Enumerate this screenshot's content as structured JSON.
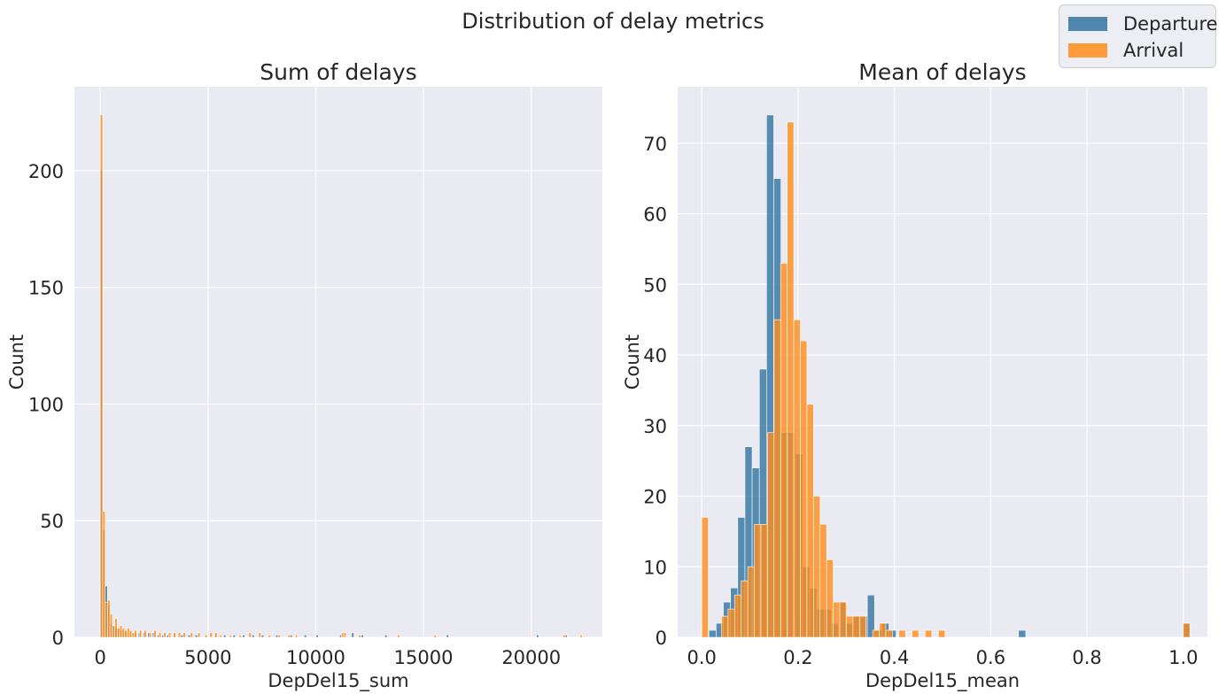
{
  "suptitle": "Distribution of delay metrics",
  "colors": {
    "departure": "#3274a1",
    "arrival": "#ff8c1a",
    "overlap": "#c5773a",
    "panel_bg": "#eaeaf2",
    "grid": "#ffffff",
    "text": "#262626"
  },
  "legend": {
    "placement": "top-right",
    "items": [
      {
        "label": "Departure",
        "color": "#3274a1"
      },
      {
        "label": "Arrival",
        "color": "#ff8c1a"
      }
    ]
  },
  "chart_data": [
    {
      "type": "histogram",
      "title": "Sum of delays",
      "xlabel": "DepDel15_sum",
      "ylabel": "Count",
      "xlim": [
        -1200,
        23300
      ],
      "ylim": [
        0,
        236
      ],
      "xticks": [
        0,
        5000,
        10000,
        15000,
        20000
      ],
      "xtick_labels": [
        "0",
        "5000",
        "10000",
        "15000",
        "20000"
      ],
      "yticks": [
        0,
        50,
        100,
        150,
        200
      ],
      "ytick_labels": [
        "0",
        "50",
        "100",
        "150",
        "200"
      ],
      "grid": true,
      "series": [
        {
          "name": "Departure",
          "bin_width": 110,
          "x": [
            0,
            110,
            220,
            330,
            440,
            550,
            660,
            770,
            880,
            990,
            1100,
            1320,
            1540,
            1760,
            1980,
            2200,
            2420,
            2640,
            2860,
            3080,
            3410,
            3740,
            4070,
            4400,
            4840,
            5280,
            5720,
            6160,
            6600,
            7040,
            7480,
            8140,
            8800,
            9460,
            10010,
            11110,
            11660,
            12100,
            13200,
            16060,
            20240,
            21560
          ],
          "counts": [
            200,
            46,
            22,
            14,
            6,
            5,
            4,
            4,
            3,
            3,
            3,
            2,
            2,
            2,
            2,
            2,
            2,
            1,
            1,
            1,
            1,
            1,
            1,
            1,
            1,
            1,
            1,
            1,
            1,
            1,
            1,
            1,
            1,
            1,
            1,
            1,
            2,
            1,
            1,
            1,
            1,
            1
          ]
        },
        {
          "name": "Arrival",
          "bin_width": 113,
          "x": [
            0,
            113,
            226,
            339,
            452,
            565,
            678,
            791,
            904,
            1017,
            1130,
            1243,
            1356,
            1469,
            1582,
            1808,
            2034,
            2260,
            2486,
            2712,
            2938,
            3164,
            3390,
            3616,
            3842,
            4181,
            4520,
            4859,
            5085,
            5311,
            5537,
            5989,
            6441,
            6893,
            7345,
            7797,
            8249,
            8701,
            9040,
            11187,
            11300,
            11978,
            13786,
            15481,
            21470,
            22261
          ],
          "counts": [
            224,
            54,
            15,
            16,
            10,
            5,
            8,
            4,
            5,
            4,
            3,
            4,
            3,
            2,
            3,
            3,
            3,
            2,
            3,
            2,
            2,
            2,
            2,
            2,
            2,
            2,
            2,
            1,
            2,
            2,
            1,
            1,
            1,
            2,
            2,
            1,
            1,
            1,
            1,
            2,
            2,
            1,
            1,
            1,
            1,
            1
          ]
        }
      ]
    },
    {
      "type": "histogram",
      "title": "Mean of delays",
      "xlabel": "DepDel15_mean",
      "ylabel": "Count",
      "xlim": [
        -0.05,
        1.05
      ],
      "ylim": [
        0,
        78
      ],
      "xticks": [
        0.0,
        0.2,
        0.4,
        0.6,
        0.8,
        1.0
      ],
      "xtick_labels": [
        "0.0",
        "0.2",
        "0.4",
        "0.6",
        "0.8",
        "1.0"
      ],
      "yticks": [
        0,
        10,
        20,
        30,
        40,
        50,
        60,
        70
      ],
      "ytick_labels": [
        "0",
        "10",
        "20",
        "30",
        "40",
        "50",
        "60",
        "70"
      ],
      "grid": true,
      "series": [
        {
          "name": "Departure",
          "bin_width": 0.01495,
          "x": [
            0.0,
            0.01495,
            0.0299,
            0.04485,
            0.0598,
            0.07475,
            0.0897,
            0.10465,
            0.1196,
            0.13455,
            0.1495,
            0.16445,
            0.1794,
            0.19435,
            0.2093,
            0.22425,
            0.2392,
            0.25415,
            0.2691,
            0.28405,
            0.299,
            0.31395,
            0.3289,
            0.34385,
            0.3588,
            0.37375,
            0.3887,
            0.6578,
            1.0
          ],
          "counts": [
            0,
            1,
            2,
            5,
            7,
            17,
            27,
            24,
            38,
            74,
            65,
            29,
            29,
            26,
            10,
            7,
            4,
            4,
            2,
            5,
            2,
            3,
            3,
            6,
            1,
            2,
            1,
            1,
            2
          ]
        },
        {
          "name": "Arrival",
          "bin_width": 0.01365,
          "x": [
            0.0,
            0.04095,
            0.0546,
            0.06825,
            0.0819,
            0.09555,
            0.1092,
            0.12285,
            0.1365,
            0.15015,
            0.1638,
            0.17745,
            0.1911,
            0.20475,
            0.2184,
            0.23205,
            0.2457,
            0.25935,
            0.273,
            0.28665,
            0.3003,
            0.31395,
            0.3276,
            0.3549,
            0.36855,
            0.38215,
            0.4095,
            0.4368,
            0.4641,
            0.4914,
            1.0
          ],
          "counts": [
            17,
            3,
            4,
            6,
            8,
            10,
            16,
            16,
            29,
            45,
            53,
            73,
            45,
            42,
            33,
            20,
            16,
            11,
            5,
            5,
            3,
            3,
            3,
            1,
            2,
            1,
            1,
            1,
            1,
            1,
            2
          ]
        }
      ]
    }
  ]
}
